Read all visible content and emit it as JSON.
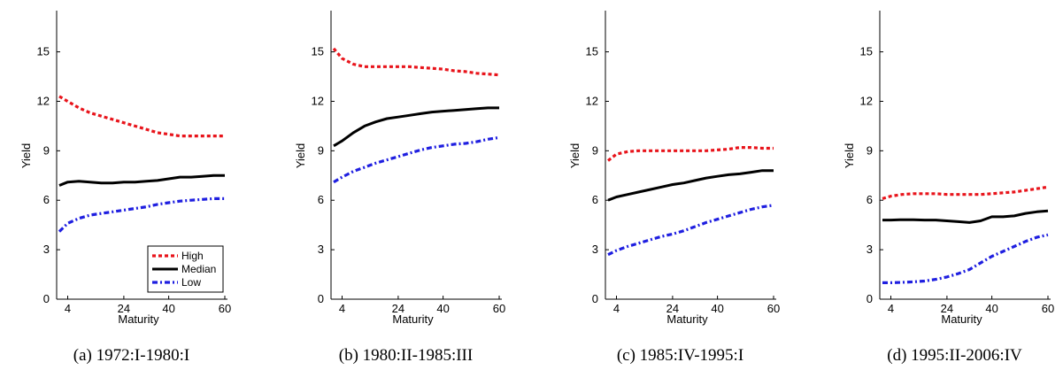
{
  "figure": {
    "colors": {
      "high": "#e8141b",
      "median": "#000000",
      "low": "#1f1fe0"
    },
    "legend_entries": [
      "High",
      "Median",
      "Low"
    ]
  },
  "chart_data": [
    {
      "type": "line",
      "caption": "(a) 1972:I-1980:I",
      "xlabel": "Maturity",
      "ylabel": "Yield",
      "x": [
        1,
        4,
        8,
        12,
        16,
        20,
        24,
        28,
        32,
        36,
        40,
        44,
        48,
        52,
        56,
        60
      ],
      "x_ticks": [
        4,
        24,
        40,
        60
      ],
      "y_ticks": [
        0,
        3,
        6,
        9,
        12,
        15
      ],
      "ylim": [
        0,
        17.5
      ],
      "legend": "bottom-right",
      "series": [
        {
          "name": "High",
          "values": [
            12.3,
            12.0,
            11.6,
            11.3,
            11.1,
            10.9,
            10.7,
            10.5,
            10.3,
            10.1,
            10.0,
            9.9,
            9.9,
            9.9,
            9.9,
            9.9
          ]
        },
        {
          "name": "Median",
          "values": [
            6.9,
            7.1,
            7.15,
            7.1,
            7.05,
            7.05,
            7.1,
            7.1,
            7.15,
            7.2,
            7.3,
            7.4,
            7.4,
            7.45,
            7.5,
            7.5
          ]
        },
        {
          "name": "Low",
          "values": [
            4.1,
            4.6,
            4.9,
            5.1,
            5.2,
            5.3,
            5.4,
            5.5,
            5.6,
            5.75,
            5.85,
            5.95,
            6.0,
            6.05,
            6.1,
            6.1
          ]
        }
      ]
    },
    {
      "type": "line",
      "caption": "(b) 1980:II-1985:III",
      "xlabel": "Maturity",
      "ylabel": "Yield",
      "x": [
        1,
        4,
        8,
        12,
        16,
        20,
        24,
        28,
        32,
        36,
        40,
        44,
        48,
        52,
        56,
        60
      ],
      "x_ticks": [
        4,
        24,
        40,
        60
      ],
      "y_ticks": [
        0,
        3,
        6,
        9,
        12,
        15
      ],
      "ylim": [
        0,
        17.5
      ],
      "series": [
        {
          "name": "High",
          "values": [
            15.2,
            14.6,
            14.25,
            14.1,
            14.1,
            14.1,
            14.1,
            14.1,
            14.05,
            14.0,
            13.95,
            13.85,
            13.8,
            13.7,
            13.65,
            13.6
          ]
        },
        {
          "name": "Median",
          "values": [
            9.3,
            9.6,
            10.1,
            10.5,
            10.75,
            10.95,
            11.05,
            11.15,
            11.25,
            11.35,
            11.4,
            11.45,
            11.5,
            11.55,
            11.6,
            11.6
          ]
        },
        {
          "name": "Low",
          "values": [
            7.1,
            7.4,
            7.75,
            8.0,
            8.25,
            8.45,
            8.65,
            8.85,
            9.05,
            9.2,
            9.3,
            9.4,
            9.45,
            9.55,
            9.7,
            9.8
          ]
        }
      ]
    },
    {
      "type": "line",
      "caption": "(c) 1985:IV-1995:I",
      "xlabel": "Maturity",
      "ylabel": "Yield",
      "x": [
        1,
        4,
        8,
        12,
        16,
        20,
        24,
        28,
        32,
        36,
        40,
        44,
        48,
        52,
        56,
        60
      ],
      "x_ticks": [
        4,
        24,
        40,
        60
      ],
      "y_ticks": [
        0,
        3,
        6,
        9,
        12,
        15
      ],
      "ylim": [
        0,
        17.5
      ],
      "series": [
        {
          "name": "High",
          "values": [
            8.4,
            8.8,
            8.95,
            9.0,
            9.0,
            9.0,
            9.0,
            9.0,
            9.0,
            9.0,
            9.05,
            9.1,
            9.2,
            9.2,
            9.15,
            9.15
          ]
        },
        {
          "name": "Median",
          "values": [
            6.0,
            6.2,
            6.35,
            6.5,
            6.65,
            6.8,
            6.95,
            7.05,
            7.2,
            7.35,
            7.45,
            7.55,
            7.6,
            7.7,
            7.8,
            7.8
          ]
        },
        {
          "name": "Low",
          "values": [
            2.7,
            2.95,
            3.2,
            3.4,
            3.6,
            3.8,
            3.95,
            4.15,
            4.4,
            4.65,
            4.85,
            5.05,
            5.25,
            5.45,
            5.6,
            5.7
          ]
        }
      ]
    },
    {
      "type": "line",
      "caption": "(d) 1995:II-2006:IV",
      "xlabel": "Maturity",
      "ylabel": "Yield",
      "x": [
        1,
        4,
        8,
        12,
        16,
        20,
        24,
        28,
        32,
        36,
        40,
        44,
        48,
        52,
        56,
        60
      ],
      "x_ticks": [
        4,
        24,
        40,
        60
      ],
      "y_ticks": [
        0,
        3,
        6,
        9,
        12,
        15
      ],
      "ylim": [
        0,
        17.5
      ],
      "series": [
        {
          "name": "High",
          "values": [
            6.1,
            6.25,
            6.35,
            6.4,
            6.4,
            6.4,
            6.35,
            6.35,
            6.35,
            6.35,
            6.4,
            6.45,
            6.5,
            6.6,
            6.7,
            6.8
          ]
        },
        {
          "name": "Median",
          "values": [
            4.8,
            4.8,
            4.82,
            4.82,
            4.8,
            4.8,
            4.75,
            4.7,
            4.65,
            4.75,
            5.0,
            5.0,
            5.05,
            5.2,
            5.3,
            5.35
          ]
        },
        {
          "name": "Low",
          "values": [
            1.0,
            1.0,
            1.02,
            1.05,
            1.1,
            1.2,
            1.35,
            1.55,
            1.8,
            2.2,
            2.6,
            2.9,
            3.2,
            3.5,
            3.75,
            3.9
          ]
        }
      ]
    }
  ]
}
